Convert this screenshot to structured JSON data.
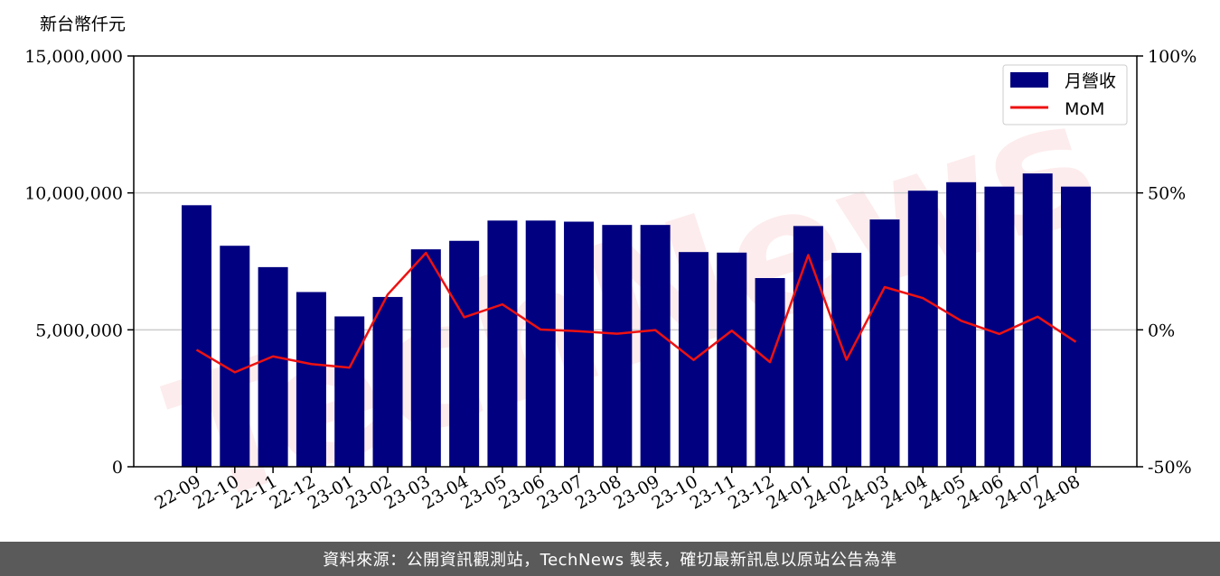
{
  "colors": {
    "bar": "#000080",
    "line": "#ee1111",
    "grid": "#cccccc",
    "footer_bg": "#5a5a5a"
  },
  "watermark_text": "TechNews",
  "left_axis_unit": "新台幣仟元",
  "footer_text": "資料來源：公開資訊觀測站，TechNews 製表，確切最新訊息以原站公告為準",
  "chart_data": {
    "type": "bar",
    "categories": [
      "22-09",
      "22-10",
      "22-11",
      "22-12",
      "23-01",
      "23-02",
      "23-03",
      "23-04",
      "23-05",
      "23-06",
      "23-07",
      "23-08",
      "23-09",
      "23-10",
      "23-11",
      "23-12",
      "24-01",
      "24-02",
      "24-03",
      "24-04",
      "24-05",
      "24-06",
      "24-07",
      "24-08"
    ],
    "series": [
      {
        "name": "月營收",
        "type": "bar",
        "axis": "left",
        "values": [
          9550000,
          8070000,
          7290000,
          6380000,
          5490000,
          6200000,
          7940000,
          8250000,
          8990000,
          8990000,
          8950000,
          8830000,
          8830000,
          7840000,
          7820000,
          6890000,
          8790000,
          7810000,
          9030000,
          10080000,
          10390000,
          10230000,
          10710000,
          10230000
        ]
      },
      {
        "name": "MoM",
        "type": "line",
        "axis": "right",
        "values": [
          -7.3,
          -15.5,
          -9.7,
          -12.5,
          -13.8,
          12.9,
          28.1,
          4.6,
          9.3,
          0.1,
          -0.5,
          -1.4,
          -0.1,
          -11.0,
          -0.3,
          -11.8,
          27.3,
          -10.9,
          15.6,
          11.6,
          3.3,
          -1.5,
          4.8,
          -4.4
        ]
      }
    ],
    "left_axis": {
      "ylim": [
        0,
        15000000
      ],
      "ticks": [
        "0",
        "5,000,000",
        "10,000,000",
        "15,000,000"
      ],
      "tick_values": [
        0,
        5000000,
        10000000,
        15000000
      ]
    },
    "right_axis": {
      "ylim": [
        -50,
        100
      ],
      "ticks": [
        "-50%",
        "0%",
        "50%",
        "100%"
      ],
      "tick_values": [
        -50,
        0,
        50,
        100
      ]
    },
    "grid": "horizontal",
    "legend": {
      "position": "top-right",
      "entries": [
        "月營收",
        "MoM"
      ]
    }
  }
}
